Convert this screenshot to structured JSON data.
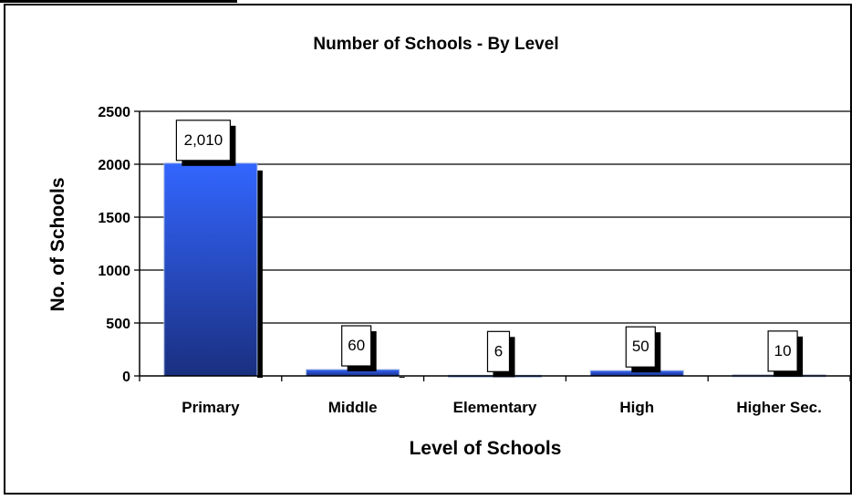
{
  "chart_data": {
    "type": "bar",
    "title": "Number of Schools  - By Level",
    "xlabel": "Level of Schools",
    "ylabel": "No. of Schools",
    "categories": [
      "Primary",
      "Middle",
      "Elementary",
      "High",
      "Higher Sec."
    ],
    "values": [
      2010,
      60,
      6,
      50,
      10
    ],
    "data_labels": [
      "2,010",
      "60",
      "6",
      "50",
      "10"
    ],
    "ylim": [
      0,
      2500
    ],
    "yticks": [
      0,
      500,
      1000,
      1500,
      2000,
      2500
    ],
    "grid": true,
    "legend": "none",
    "colors": {
      "bar_top": "#3366ff",
      "bar_bottom": "#1a2f80",
      "shadow": "#000000",
      "higher_sec_bar": "#7a1f1f"
    }
  }
}
